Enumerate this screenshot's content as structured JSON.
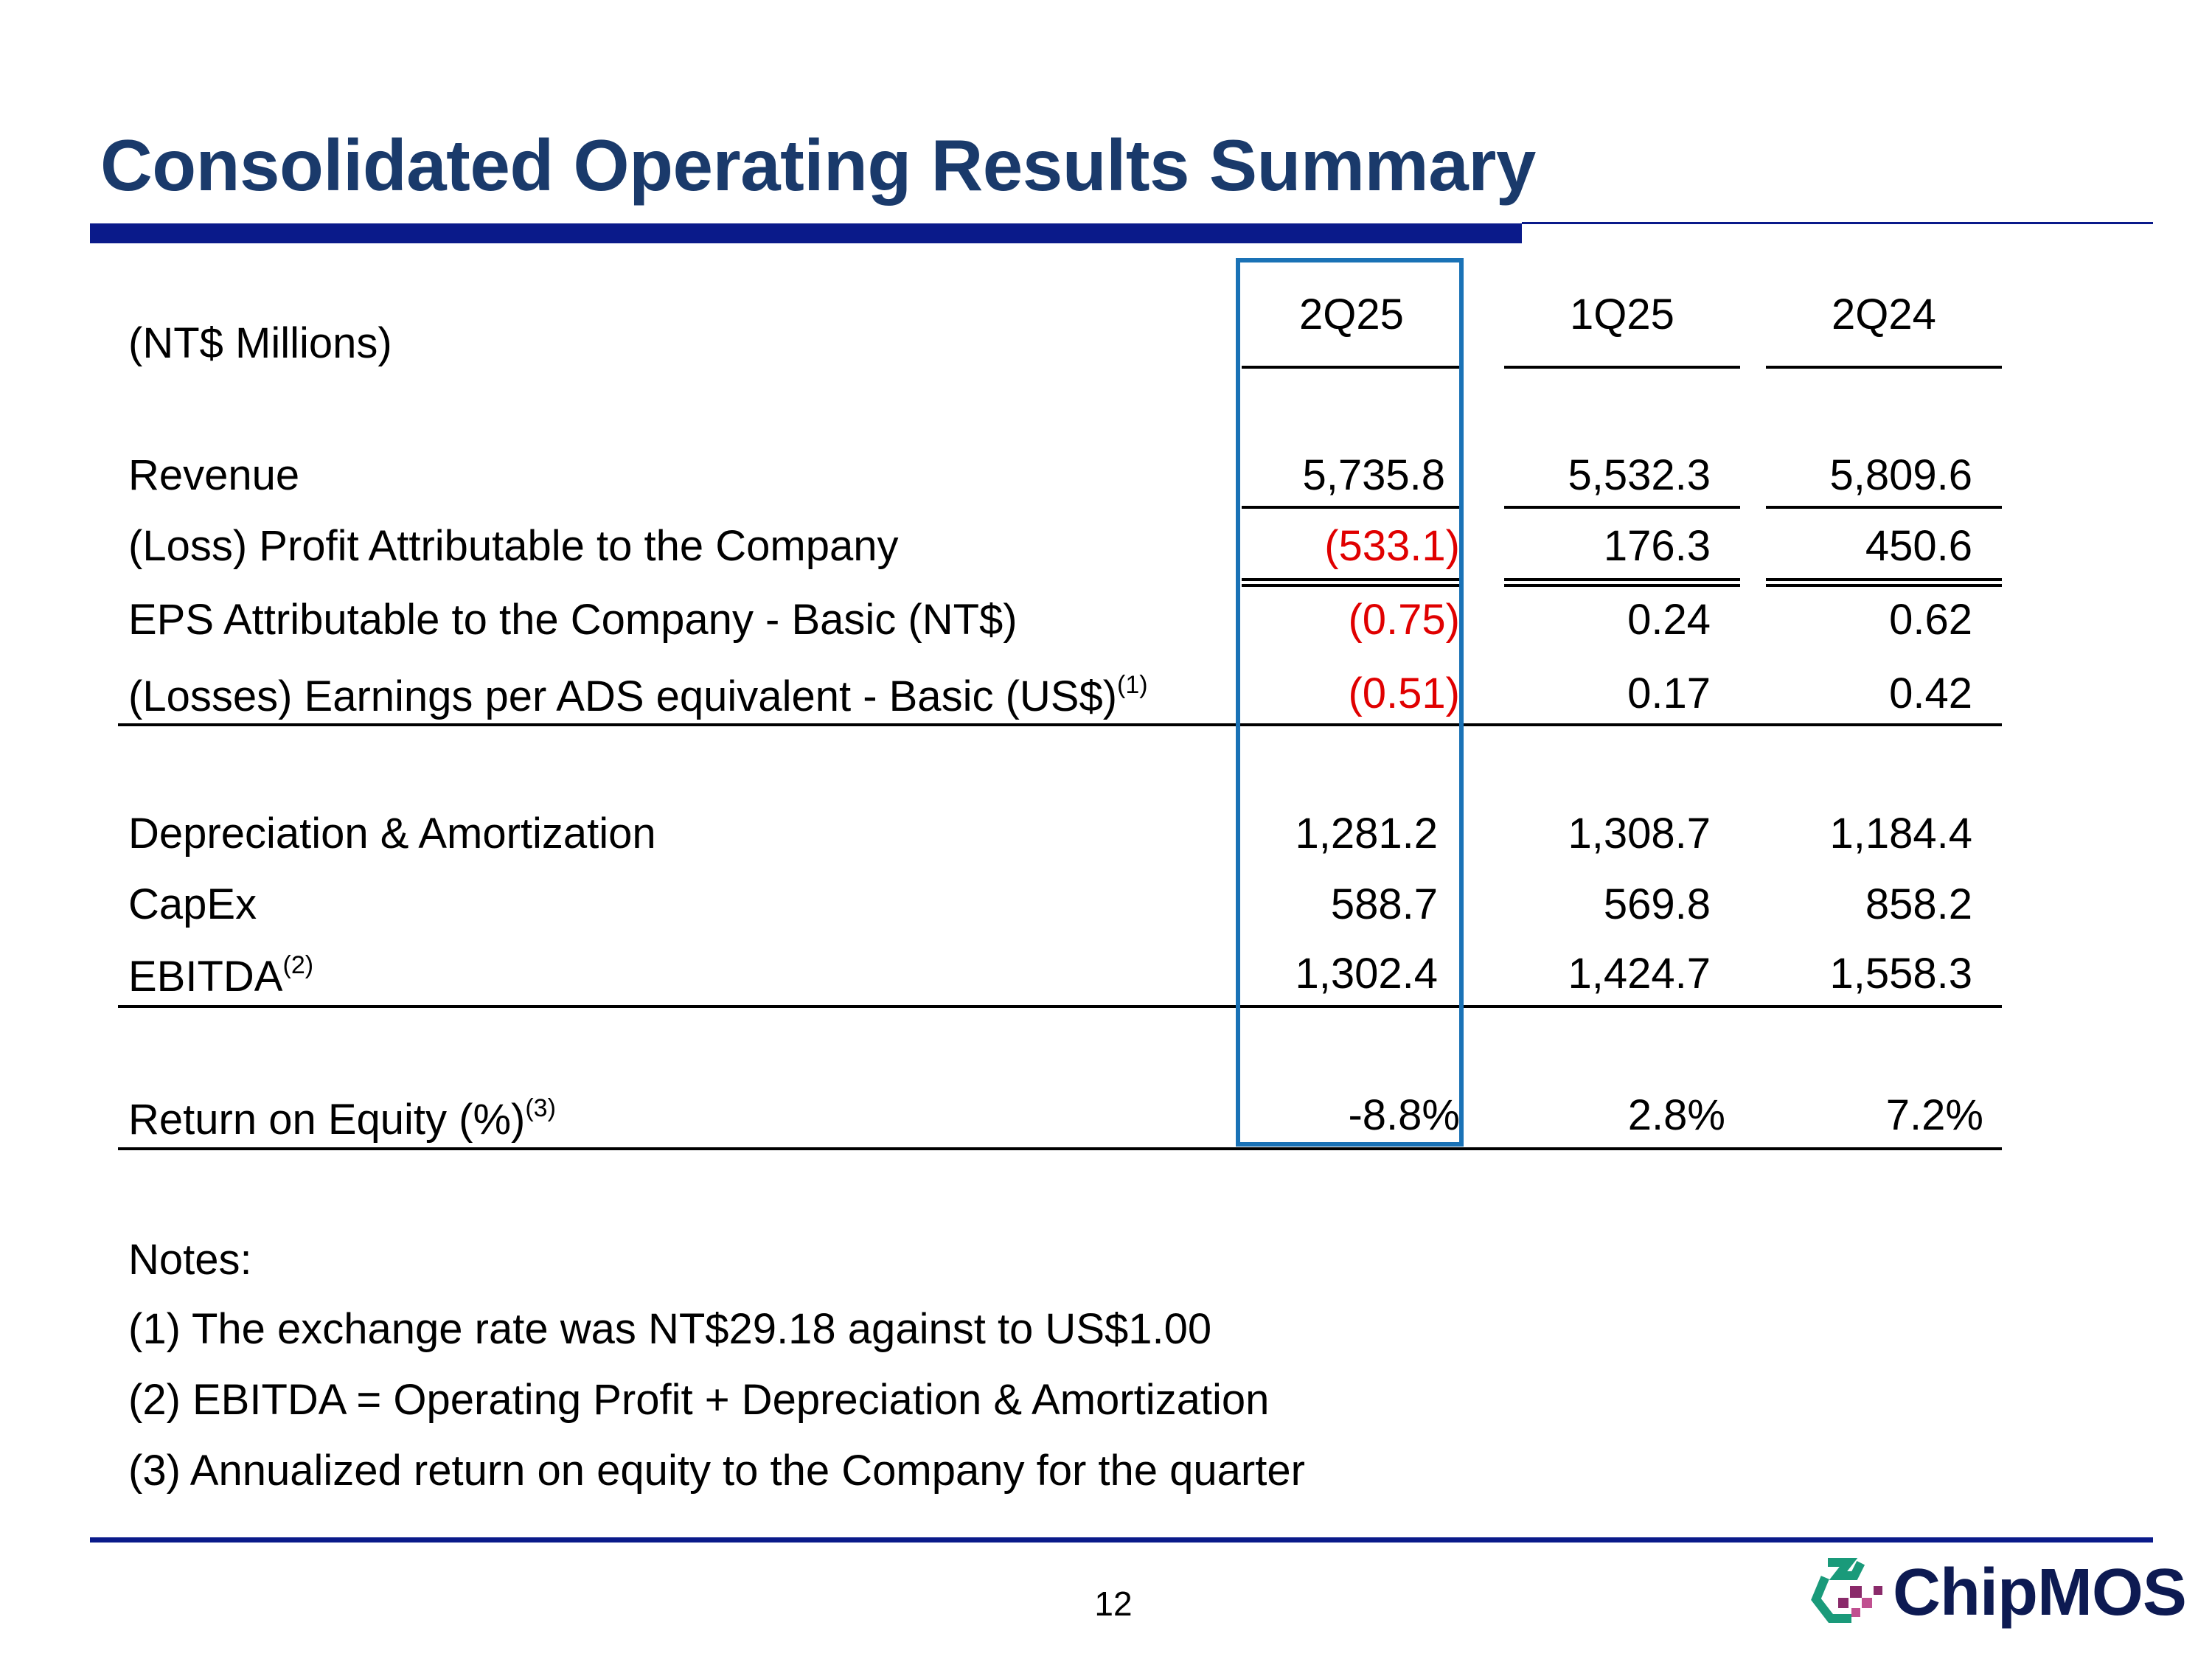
{
  "title": "Consolidated Operating Results Summary",
  "units_label": "(NT$ Millions)",
  "columns": [
    "2Q25",
    "1Q25",
    "2Q24"
  ],
  "rows": {
    "revenue": {
      "label": "Revenue",
      "values": [
        "5,735.8",
        "5,532.3",
        "5,809.6"
      ]
    },
    "profit": {
      "label": "(Loss) Profit Attributable to the Company",
      "values": [
        "(533.1)",
        "176.3",
        "450.6"
      ]
    },
    "eps": {
      "label": "EPS Attributable to the Company - Basic (NT$)",
      "values": [
        "(0.75)",
        "0.24",
        "0.62"
      ]
    },
    "ads": {
      "label": "(Losses) Earnings per ADS equivalent - Basic (US$)",
      "note": "(1)",
      "values": [
        "(0.51)",
        "0.17",
        "0.42"
      ]
    },
    "da": {
      "label": "Depreciation & Amortization",
      "values": [
        "1,281.2",
        "1,308.7",
        "1,184.4"
      ]
    },
    "capex": {
      "label": "CapEx",
      "values": [
        "588.7",
        "569.8",
        "858.2"
      ]
    },
    "ebitda": {
      "label": "EBITDA",
      "note": "(2)",
      "values": [
        "1,302.4",
        "1,424.7",
        "1,558.3"
      ]
    },
    "roe": {
      "label": "Return on Equity (%)",
      "note": "(3)",
      "values": [
        "-8.8%",
        "2.8%",
        "7.2%"
      ]
    }
  },
  "notes": {
    "heading": "Notes:",
    "items": [
      "(1) The exchange rate was NT$29.18 against to US$1.00",
      "(2) EBITDA = Operating Profit + Depreciation & Amortization",
      "(3) Annualized return on equity to the Company for the quarter"
    ]
  },
  "page_number": "12",
  "logo_text": "ChipMOS",
  "colors": {
    "title": "#1a3a6b",
    "bar": "#0a1a8a",
    "highlight": "#1a72b6",
    "negative": "#e00000"
  }
}
